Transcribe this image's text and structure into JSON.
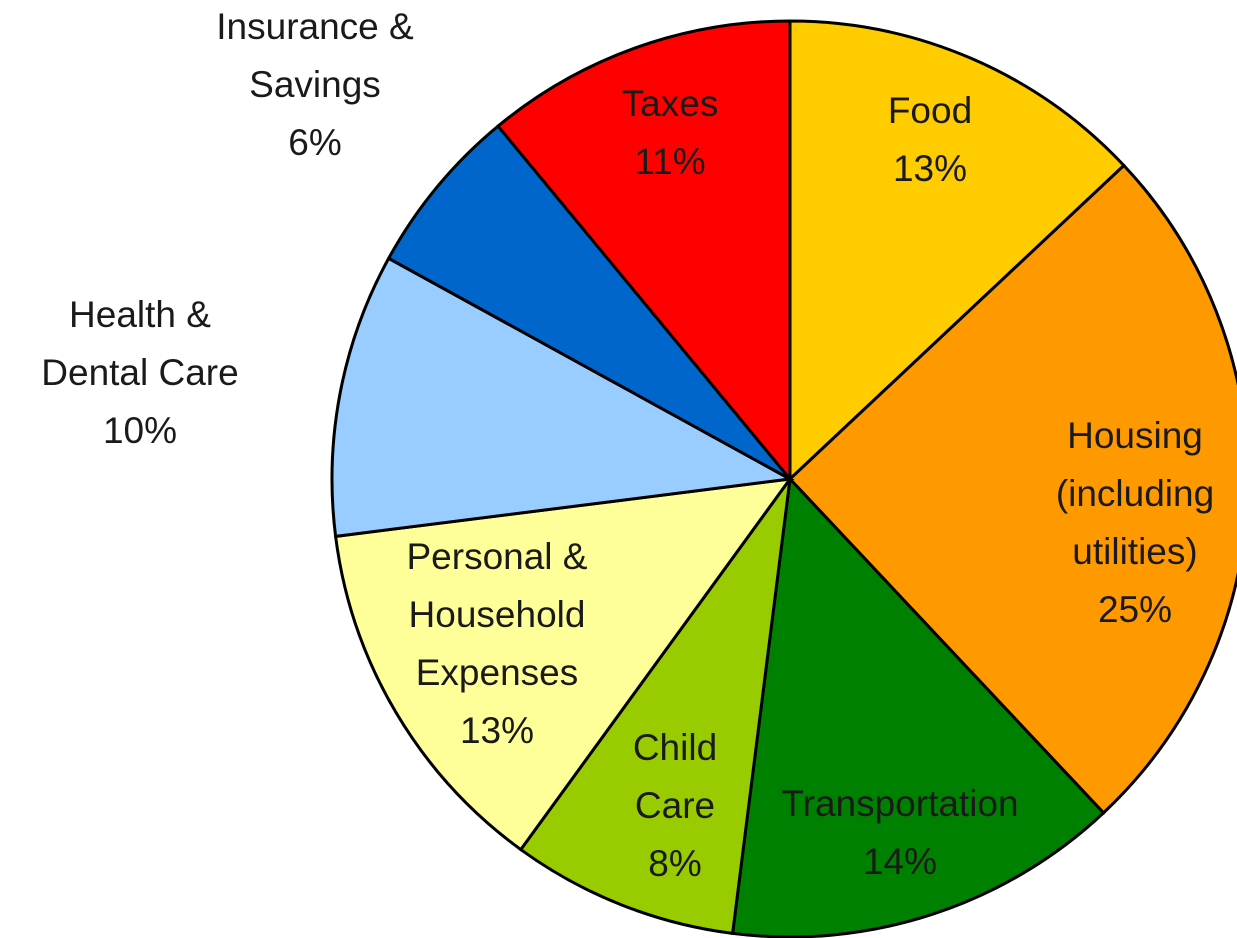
{
  "chart_data": {
    "type": "pie",
    "categories": [
      "Food",
      "Housing\n(including\nutilities)",
      "Transportation",
      "Child\nCare",
      "Personal &\nHousehold\nExpenses",
      "Health &\nDental Care",
      "Insurance &\nSavings",
      "Taxes"
    ],
    "values": [
      13,
      25,
      14,
      8,
      13,
      10,
      6,
      11
    ],
    "value_labels": [
      "13%",
      "25%",
      "14%",
      "8%",
      "13%",
      "10%",
      "6%",
      "11%"
    ],
    "colors": [
      "#ffcc00",
      "#ff9900",
      "#008000",
      "#99cc00",
      "#ffff99",
      "#99ccff",
      "#0066cc",
      "#ff0000"
    ]
  }
}
